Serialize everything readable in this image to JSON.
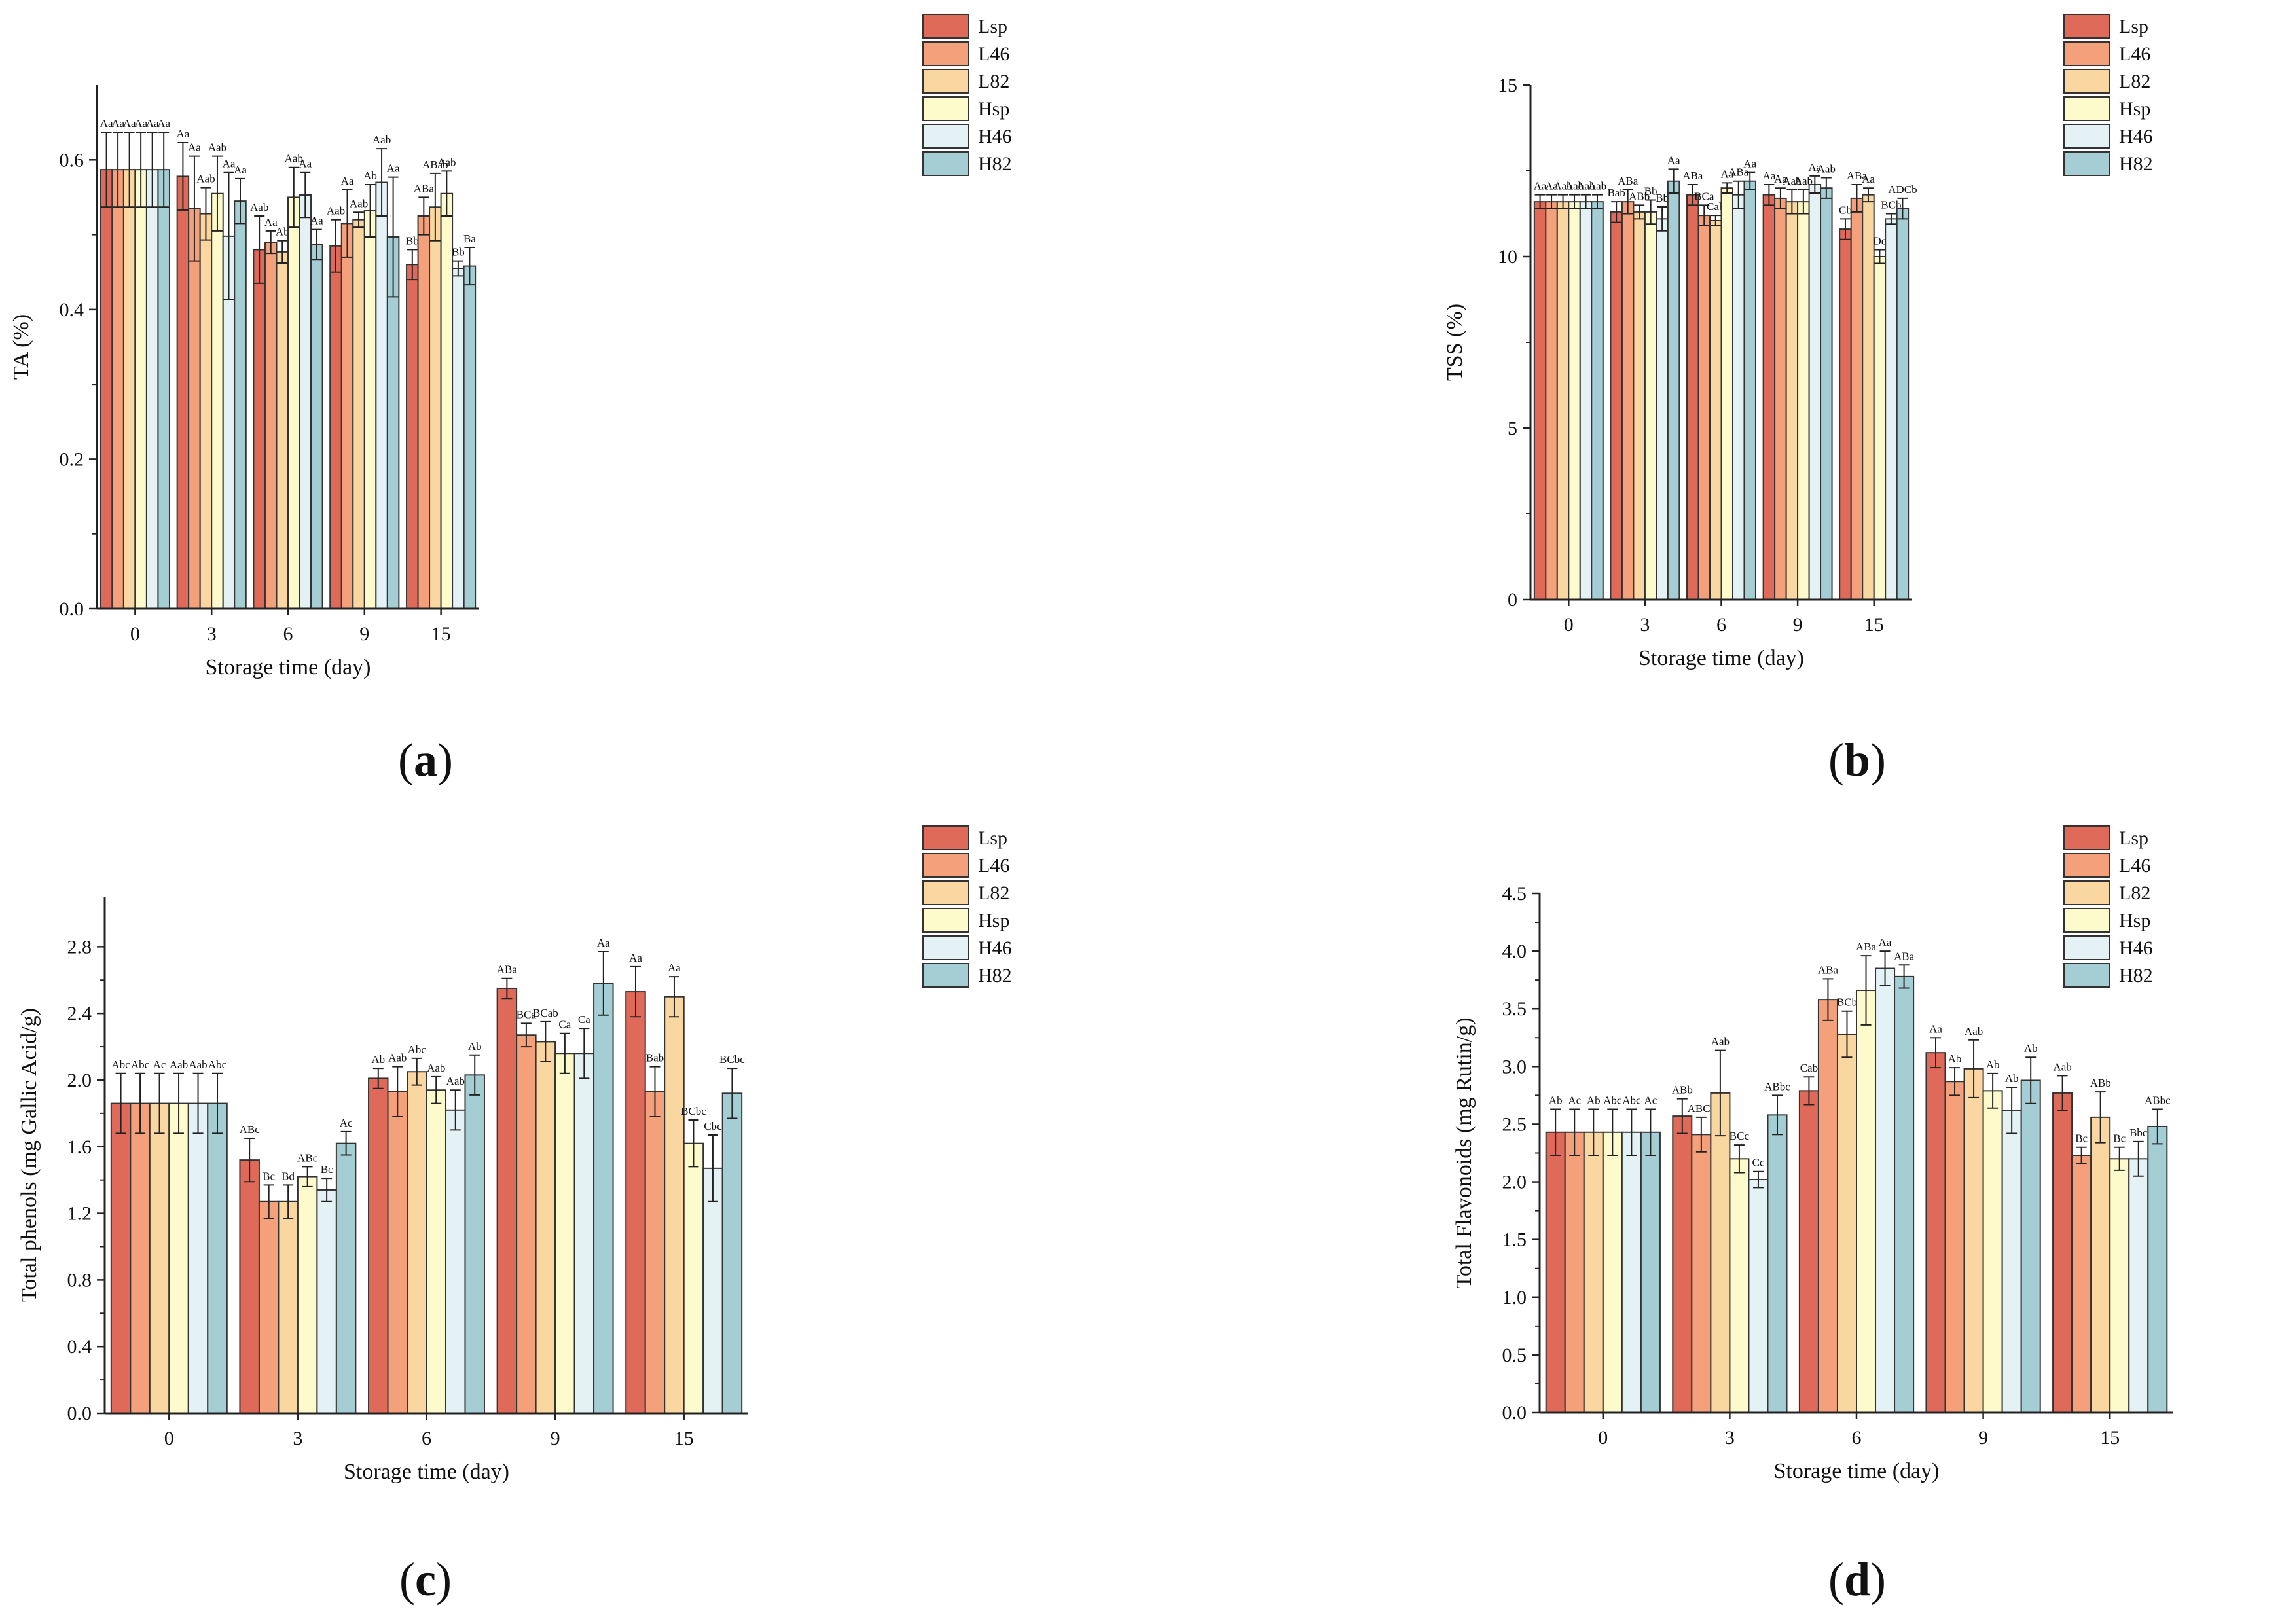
{
  "legend_labels": [
    "Lsp",
    "L46",
    "L82",
    "Hsp",
    "H46",
    "H82"
  ],
  "colors": [
    "#E06A5A",
    "#F4A07A",
    "#FAD6A0",
    "#FDFBCB",
    "#E4F2F6",
    "#A5CED4"
  ],
  "chart_data": [
    {
      "type": "bar",
      "panel_label": "a",
      "xlabel": "Storage time (day)",
      "ylabel": "TA (%)",
      "categories": [
        "0",
        "3",
        "6",
        "9",
        "15"
      ],
      "ylim": [
        0,
        0.7
      ],
      "yticks": [
        0.0,
        0.2,
        0.4,
        0.6
      ],
      "ytick_labels": [
        "0.0",
        "0.2",
        "0.4",
        "0.6"
      ],
      "grid": false,
      "legend_position": "top-right",
      "series": [
        {
          "name": "Lsp",
          "values": [
            0.587,
            0.578,
            0.48,
            0.485,
            0.46
          ],
          "errors": [
            0.05,
            0.045,
            0.045,
            0.035,
            0.02
          ],
          "labels": [
            "Aa",
            "Aa",
            "Aab",
            "Aab",
            "Bb"
          ]
        },
        {
          "name": "L46",
          "values": [
            0.587,
            0.535,
            0.49,
            0.515,
            0.525
          ],
          "errors": [
            0.05,
            0.07,
            0.015,
            0.045,
            0.025
          ],
          "labels": [
            "Aa",
            "Aa",
            "Aa",
            "Aa",
            "ABa"
          ]
        },
        {
          "name": "L82",
          "values": [
            0.587,
            0.528,
            0.477,
            0.52,
            0.537
          ],
          "errors": [
            0.05,
            0.035,
            0.015,
            0.01,
            0.045
          ],
          "labels": [
            "Aa",
            "Aab",
            "Ab",
            "Aab",
            "ABab"
          ]
        },
        {
          "name": "Hsp",
          "values": [
            0.587,
            0.555,
            0.55,
            0.532,
            0.555
          ],
          "errors": [
            0.05,
            0.05,
            0.04,
            0.035,
            0.03
          ],
          "labels": [
            "Aa",
            "Aab",
            "Aab",
            "Ab",
            "Aab"
          ]
        },
        {
          "name": "H46",
          "values": [
            0.587,
            0.498,
            0.553,
            0.57,
            0.455
          ],
          "errors": [
            0.05,
            0.085,
            0.03,
            0.045,
            0.01
          ],
          "labels": [
            "Aa",
            "Aa",
            "Aa",
            "Aab",
            "Bb"
          ]
        },
        {
          "name": "H82",
          "values": [
            0.587,
            0.545,
            0.487,
            0.497,
            0.458
          ],
          "errors": [
            0.05,
            0.03,
            0.02,
            0.08,
            0.025
          ],
          "labels": [
            "Aa",
            "Aa",
            "Aa",
            "Aa",
            "Ba"
          ]
        }
      ]
    },
    {
      "type": "bar",
      "panel_label": "b",
      "xlabel": "Storage time (day)",
      "ylabel": "TSS (%)",
      "categories": [
        "0",
        "3",
        "6",
        "9",
        "15"
      ],
      "ylim": [
        0,
        15
      ],
      "yticks": [
        0,
        5,
        10,
        15
      ],
      "ytick_labels": [
        "0",
        "5",
        "10",
        "15"
      ],
      "grid": false,
      "legend_position": "top-right",
      "series": [
        {
          "name": "Lsp",
          "values": [
            11.6,
            11.3,
            11.8,
            11.8,
            10.8
          ],
          "errors": [
            0.2,
            0.3,
            0.3,
            0.3,
            0.3
          ],
          "labels": [
            "Aa",
            "Bab",
            "ABa",
            "Aa",
            "Cb"
          ]
        },
        {
          "name": "L46",
          "values": [
            11.6,
            11.6,
            11.2,
            11.7,
            11.7
          ],
          "errors": [
            0.2,
            0.35,
            0.3,
            0.3,
            0.4
          ],
          "labels": [
            "Aa",
            "ABa",
            "BCa",
            "Aa",
            "ABa"
          ]
        },
        {
          "name": "L82",
          "values": [
            11.6,
            11.3,
            11.05,
            11.6,
            11.8
          ],
          "errors": [
            0.2,
            0.2,
            0.15,
            0.35,
            0.2
          ],
          "labels": [
            "Aab",
            "ABb",
            "Cab",
            "Aab",
            "Aa"
          ]
        },
        {
          "name": "Hsp",
          "values": [
            11.6,
            11.3,
            12.0,
            11.6,
            10.0
          ],
          "errors": [
            0.2,
            0.35,
            0.15,
            0.35,
            0.2
          ],
          "labels": [
            "Aab",
            "Bb",
            "Aa",
            "Aab",
            "Dc"
          ]
        },
        {
          "name": "H46",
          "values": [
            11.6,
            11.1,
            11.8,
            12.1,
            11.1
          ],
          "errors": [
            0.2,
            0.35,
            0.4,
            0.25,
            0.15
          ],
          "labels": [
            "Aab",
            "Bb",
            "ABa",
            "Aa",
            "BCb"
          ]
        },
        {
          "name": "H82",
          "values": [
            11.6,
            12.2,
            12.2,
            12.0,
            11.4
          ],
          "errors": [
            0.2,
            0.35,
            0.25,
            0.3,
            0.3
          ],
          "labels": [
            "Aab",
            "Aa",
            "Aa",
            "Aab",
            "ADCb"
          ]
        }
      ]
    },
    {
      "type": "bar",
      "panel_label": "c",
      "xlabel": "Storage time (day)",
      "ylabel": "Total phenols (mg Gallic Acid/g)",
      "categories": [
        "0",
        "3",
        "6",
        "9",
        "15"
      ],
      "ylim": [
        0,
        3.1
      ],
      "yticks": [
        0.0,
        0.4,
        0.8,
        1.2,
        1.6,
        2.0,
        2.4,
        2.8
      ],
      "ytick_labels": [
        "0.0",
        "0.4",
        "0.8",
        "1.2",
        "1.6",
        "2.0",
        "2.4",
        "2.8"
      ],
      "grid": false,
      "legend_position": "top-right",
      "series": [
        {
          "name": "Lsp",
          "values": [
            1.86,
            1.52,
            2.01,
            2.55,
            2.53
          ],
          "errors": [
            0.18,
            0.13,
            0.06,
            0.06,
            0.15
          ],
          "labels": [
            "Abc",
            "ABc",
            "Ab",
            "ABa",
            "Aa"
          ]
        },
        {
          "name": "L46",
          "values": [
            1.86,
            1.27,
            1.93,
            2.27,
            1.93
          ],
          "errors": [
            0.18,
            0.1,
            0.15,
            0.07,
            0.15
          ],
          "labels": [
            "Abc",
            "Bc",
            "Aab",
            "BCa",
            "Bab"
          ]
        },
        {
          "name": "L82",
          "values": [
            1.86,
            1.27,
            2.05,
            2.23,
            2.5
          ],
          "errors": [
            0.18,
            0.1,
            0.08,
            0.12,
            0.12
          ],
          "labels": [
            "Ac",
            "Bd",
            "Abc",
            "BCab",
            "Aa"
          ]
        },
        {
          "name": "Hsp",
          "values": [
            1.86,
            1.42,
            1.94,
            2.16,
            1.62
          ],
          "errors": [
            0.18,
            0.06,
            0.08,
            0.12,
            0.14
          ],
          "labels": [
            "Aab",
            "ABc",
            "Aab",
            "Ca",
            "BCbc"
          ]
        },
        {
          "name": "H46",
          "values": [
            1.86,
            1.34,
            1.82,
            2.16,
            1.47
          ],
          "errors": [
            0.18,
            0.07,
            0.12,
            0.15,
            0.2
          ],
          "labels": [
            "Aab",
            "Bc",
            "Aab",
            "Ca",
            "Cbc"
          ]
        },
        {
          "name": "H82",
          "values": [
            1.86,
            1.62,
            2.03,
            2.58,
            1.92
          ],
          "errors": [
            0.18,
            0.07,
            0.12,
            0.19,
            0.15
          ],
          "labels": [
            "Abc",
            "Ac",
            "Ab",
            "Aa",
            "BCbc"
          ]
        }
      ]
    },
    {
      "type": "bar",
      "panel_label": "d",
      "xlabel": "Storage time (day)",
      "ylabel": "Total Flavonoids (mg Rutin/g)",
      "categories": [
        "0",
        "3",
        "6",
        "9",
        "15"
      ],
      "ylim": [
        0,
        4.5
      ],
      "yticks": [
        0.0,
        0.5,
        1.0,
        1.5,
        2.0,
        2.5,
        3.0,
        3.5,
        4.0,
        4.5
      ],
      "ytick_labels": [
        "0.0",
        "0.5",
        "1.0",
        "1.5",
        "2.0",
        "2.5",
        "3.0",
        "3.5",
        "4.0",
        "4.5"
      ],
      "grid": false,
      "legend_position": "top-right",
      "series": [
        {
          "name": "Lsp",
          "values": [
            2.43,
            2.57,
            2.79,
            3.12,
            2.77
          ],
          "errors": [
            0.2,
            0.15,
            0.12,
            0.13,
            0.15
          ],
          "labels": [
            "Ab",
            "ABb",
            "Cab",
            "Aa",
            "Aab"
          ]
        },
        {
          "name": "L46",
          "values": [
            2.43,
            2.41,
            3.58,
            2.87,
            2.23
          ],
          "errors": [
            0.2,
            0.15,
            0.18,
            0.12,
            0.07
          ],
          "labels": [
            "Ac",
            "ABCc",
            "ABa",
            "Ab",
            "Bc"
          ]
        },
        {
          "name": "L82",
          "values": [
            2.43,
            2.77,
            3.28,
            2.98,
            2.56
          ],
          "errors": [
            0.2,
            0.37,
            0.2,
            0.25,
            0.22
          ],
          "labels": [
            "Ab",
            "Aab",
            "BCb",
            "Aab",
            "ABb"
          ]
        },
        {
          "name": "Hsp",
          "values": [
            2.43,
            2.2,
            3.66,
            2.79,
            2.2
          ],
          "errors": [
            0.2,
            0.12,
            0.3,
            0.15,
            0.1
          ],
          "labels": [
            "Abc",
            "BCc",
            "ABa",
            "Ab",
            "Bc"
          ]
        },
        {
          "name": "H46",
          "values": [
            2.43,
            2.02,
            3.85,
            2.62,
            2.2
          ],
          "errors": [
            0.2,
            0.07,
            0.15,
            0.2,
            0.15
          ],
          "labels": [
            "Abc",
            "Cc",
            "Aa",
            "Ab",
            "Bbc"
          ]
        },
        {
          "name": "H82",
          "values": [
            2.43,
            2.58,
            3.78,
            2.88,
            2.48
          ],
          "errors": [
            0.2,
            0.17,
            0.1,
            0.2,
            0.15
          ],
          "labels": [
            "Ac",
            "ABbc",
            "ABa",
            "Ab",
            "ABbc"
          ]
        }
      ]
    }
  ]
}
